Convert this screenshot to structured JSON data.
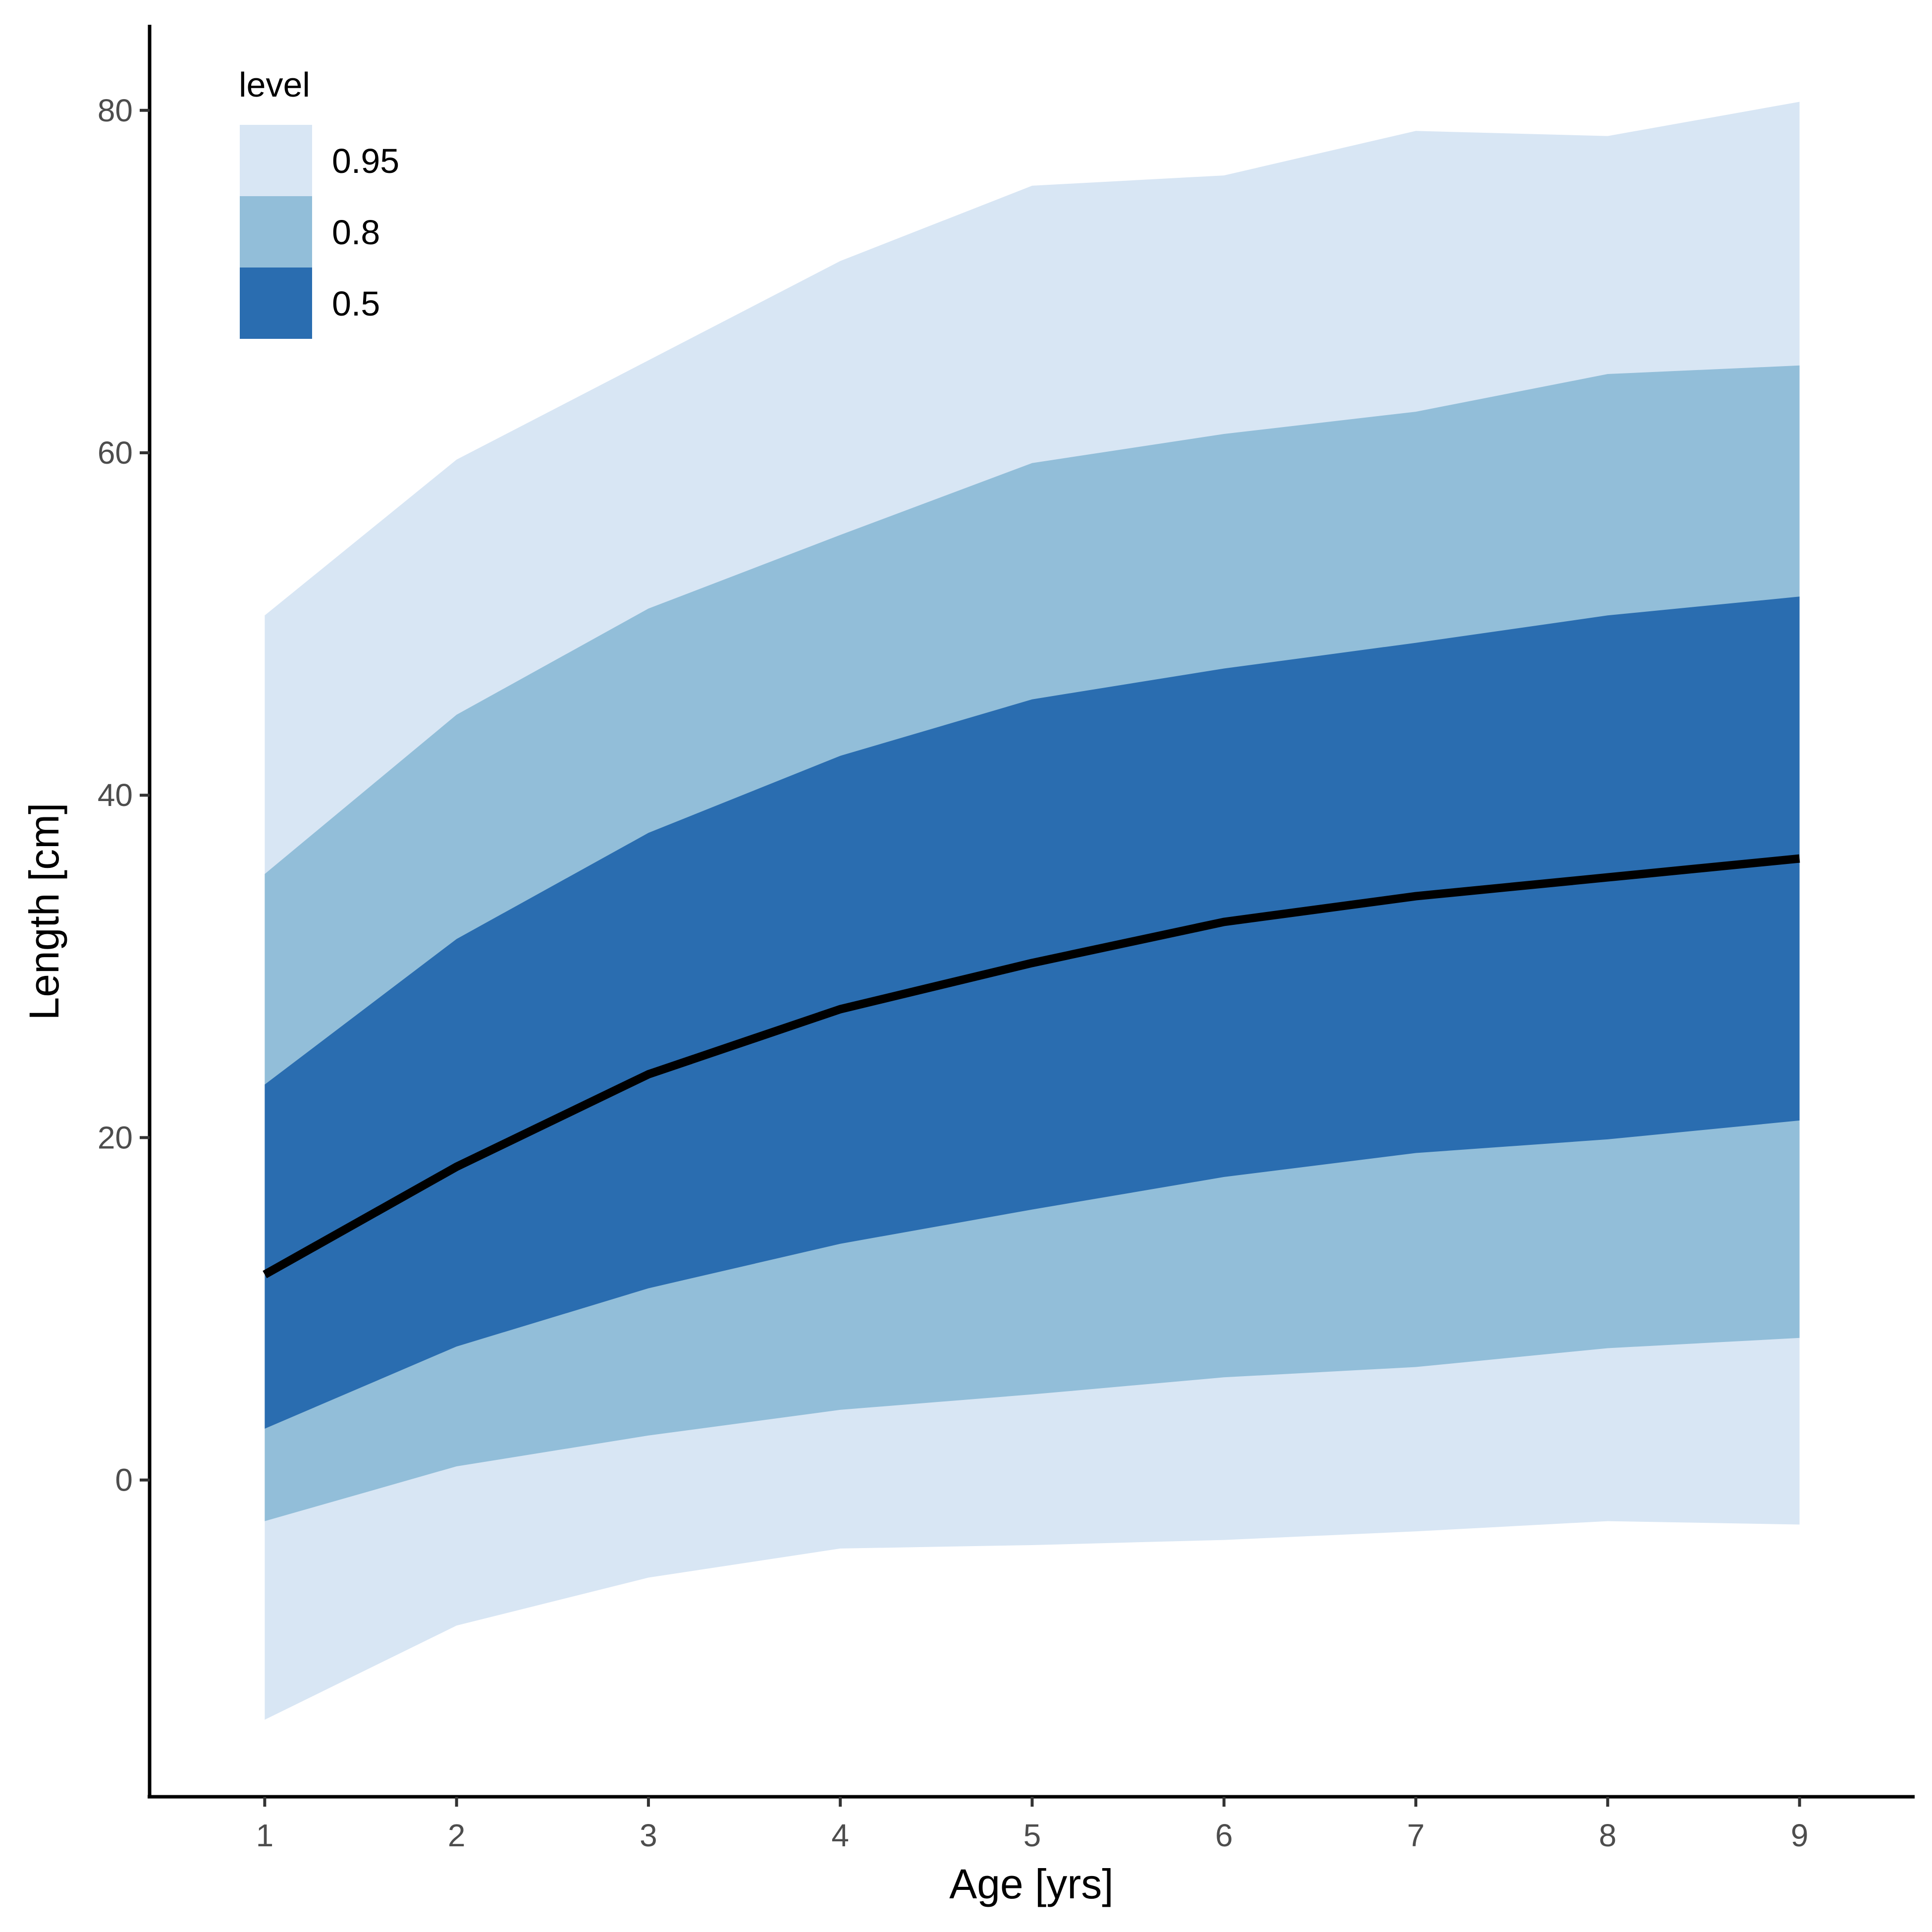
{
  "chart_data": {
    "type": "area",
    "xlabel": "Age [yrs]",
    "ylabel": "Length [cm]",
    "x": [
      1,
      2,
      3,
      4,
      5,
      6,
      7,
      8,
      9
    ],
    "xticks": [
      "1",
      "2",
      "3",
      "4",
      "5",
      "6",
      "7",
      "8",
      "9"
    ],
    "yticks": [
      "0",
      "20",
      "40",
      "60",
      "80"
    ],
    "ylim": [
      -18.5,
      85
    ],
    "xlim": [
      0.4,
      9.6
    ],
    "grid": false,
    "legend": {
      "title": "level",
      "position": "top-left",
      "entries": [
        {
          "label": "0.95",
          "color": "#d8e6f4"
        },
        {
          "label": "0.8",
          "color": "#92bed9"
        },
        {
          "label": "0.5",
          "color": "#2a6db0"
        }
      ]
    },
    "bands": [
      {
        "level": "0.95",
        "color": "#d8e6f4",
        "lower": [
          -14,
          -8.5,
          -5.7,
          -4,
          -3.8,
          -3.5,
          -3,
          -2.4,
          -2.6
        ],
        "upper": [
          50.5,
          59.6,
          65.4,
          71.2,
          75.6,
          76.2,
          78.8,
          78.5,
          80.5
        ]
      },
      {
        "level": "0.8",
        "color": "#92bed9",
        "lower": [
          -2.4,
          0.8,
          2.6,
          4.1,
          5.0,
          6.0,
          6.6,
          7.7,
          8.3
        ],
        "upper": [
          35.4,
          44.7,
          50.9,
          55.2,
          59.4,
          61.1,
          62.4,
          64.6,
          65.1
        ]
      },
      {
        "level": "0.5",
        "color": "#2a6db0",
        "lower": [
          3.0,
          7.8,
          11.2,
          13.8,
          15.8,
          17.7,
          19.1,
          19.9,
          21.0
        ],
        "upper": [
          23.1,
          31.6,
          37.8,
          42.3,
          45.6,
          47.4,
          48.9,
          50.5,
          51.6
        ]
      }
    ],
    "median": {
      "color": "#000000",
      "values": [
        12.0,
        18.3,
        23.7,
        27.5,
        30.2,
        32.6,
        34.1,
        35.2,
        36.3
      ]
    }
  }
}
